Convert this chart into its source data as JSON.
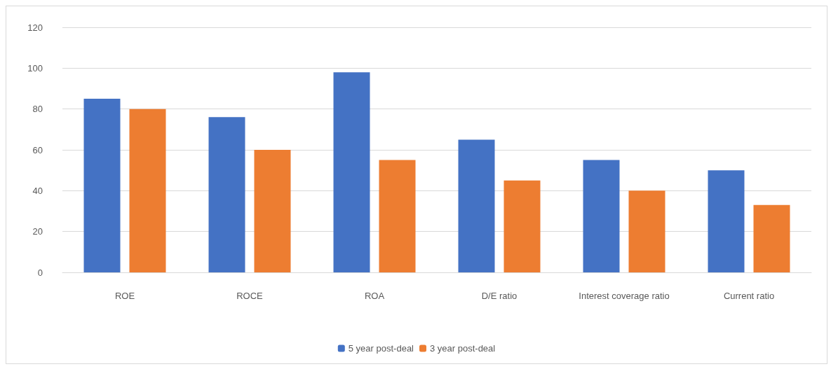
{
  "chart_data": {
    "type": "bar",
    "categories": [
      "ROE",
      "ROCE",
      "ROA",
      "D/E ratio",
      "Interest coverage ratio",
      "Current ratio"
    ],
    "series": [
      {
        "name": "5 year post-deal",
        "color": "#4472c4",
        "values": [
          85,
          76,
          98,
          65,
          55,
          50
        ]
      },
      {
        "name": "3 year post-deal",
        "color": "#ed7d31",
        "values": [
          80,
          60,
          55,
          45,
          40,
          33
        ]
      }
    ],
    "ylim": [
      0,
      120
    ],
    "yticks": [
      0,
      20,
      40,
      60,
      80,
      100,
      120
    ],
    "grid": "y",
    "legend": "bottom"
  }
}
